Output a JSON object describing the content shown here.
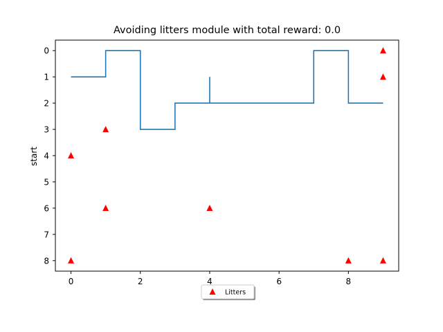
{
  "chart_data": {
    "type": "line",
    "title": "Avoiding litters module with total reward: 0.0",
    "xlabel": "",
    "ylabel": "start",
    "xlim": [
      -0.45,
      9.45
    ],
    "ylim": [
      8.4,
      -0.4
    ],
    "y_inverted": true,
    "x_ticks": [
      0,
      2,
      4,
      6,
      8
    ],
    "y_ticks": [
      0,
      1,
      2,
      3,
      4,
      5,
      6,
      7,
      8
    ],
    "grid": false,
    "legend": {
      "placement": "below-center",
      "shadow": true
    },
    "colors": {
      "path": "#1f77b4",
      "litters": "#ff0000"
    },
    "series": [
      {
        "type": "line",
        "style": "step",
        "points": [
          [
            0,
            1
          ],
          [
            1,
            1
          ],
          [
            1,
            0
          ],
          [
            2,
            0
          ],
          [
            2,
            3
          ],
          [
            3,
            3
          ],
          [
            3,
            2
          ],
          [
            4,
            2
          ],
          [
            4,
            1
          ],
          [
            4,
            2
          ],
          [
            7,
            2
          ],
          [
            7,
            0
          ],
          [
            8,
            0
          ],
          [
            8,
            2
          ],
          [
            9,
            2
          ]
        ]
      },
      {
        "name": "Litters",
        "type": "scatter",
        "marker": "triangle",
        "points": [
          [
            9,
            0
          ],
          [
            9,
            1
          ],
          [
            1,
            3
          ],
          [
            0,
            4
          ],
          [
            1,
            6
          ],
          [
            4,
            6
          ],
          [
            0,
            8
          ],
          [
            8,
            8
          ],
          [
            9,
            8
          ]
        ]
      }
    ]
  }
}
